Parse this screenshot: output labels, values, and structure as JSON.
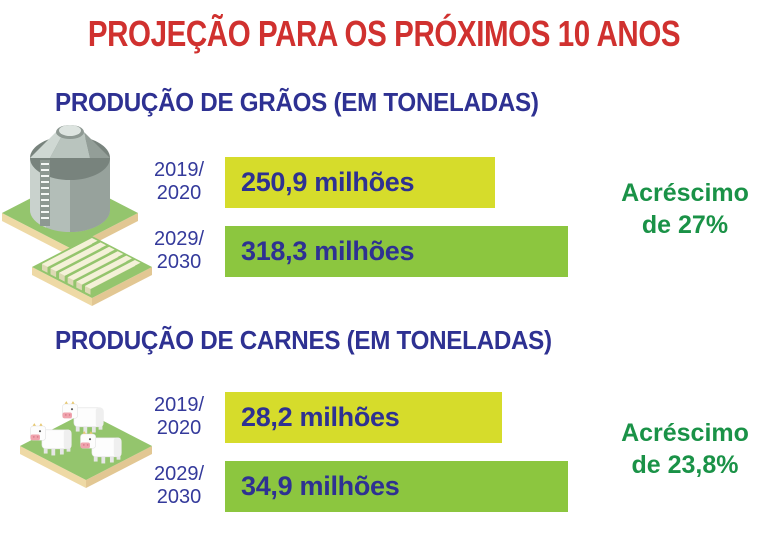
{
  "title": "PROJEÇÃO PARA OS PRÓXIMOS 10 ANOS",
  "colors": {
    "title_red": "#d0312f",
    "navy": "#2e3192",
    "accent_green": "#1a9247",
    "bar_yellow_green": "#d6dc2b",
    "bar_green": "#8cc63f"
  },
  "sections": [
    {
      "heading": "PRODUÇÃO DE GRÃOS (EM TONELADAS)",
      "icon": "grain-silo-and-crop-field",
      "rows": [
        {
          "period_line1": "2019/",
          "period_line2": "2020",
          "value": 250.9,
          "value_label": "250,9 milhões",
          "bar_color": "#d6dc2b"
        },
        {
          "period_line1": "2029/",
          "period_line2": "2030",
          "value": 318.3,
          "value_label": "318,3 milhões",
          "bar_color": "#8cc63f"
        }
      ],
      "increase": {
        "line1": "Acréscimo",
        "line2": "de 27%"
      }
    },
    {
      "heading": "PRODUÇÃO DE CARNES (EM TONELADAS)",
      "icon": "cattle-herd",
      "rows": [
        {
          "period_line1": "2019/",
          "period_line2": "2020",
          "value": 28.2,
          "value_label": "28,2 milhões",
          "bar_color": "#d6dc2b"
        },
        {
          "period_line1": "2029/",
          "period_line2": "2030",
          "value": 34.9,
          "value_label": "34,9 milhões",
          "bar_color": "#8cc63f"
        }
      ],
      "increase": {
        "line1": "Acréscimo",
        "line2": "de 23,8%"
      }
    }
  ],
  "chart_data": [
    {
      "type": "bar",
      "orientation": "horizontal",
      "title": "PRODUÇÃO DE GRÃOS (EM TONELADAS)",
      "categories": [
        "2019/2020",
        "2029/2030"
      ],
      "values": [
        250.9,
        318.3
      ],
      "unit": "milhões de toneladas",
      "data_labels": [
        "250,9 milhões",
        "318,3 milhões"
      ],
      "annotation": "Acréscimo de 27%",
      "bar_colors": [
        "#d6dc2b",
        "#8cc63f"
      ],
      "legend": "none",
      "grid": false,
      "axes": "none"
    },
    {
      "type": "bar",
      "orientation": "horizontal",
      "title": "PRODUÇÃO DE CARNES (EM TONELADAS)",
      "categories": [
        "2019/2020",
        "2029/2030"
      ],
      "values": [
        28.2,
        34.9
      ],
      "unit": "milhões de toneladas",
      "data_labels": [
        "28,2 milhões",
        "34,9 milhões"
      ],
      "annotation": "Acréscimo de 23,8%",
      "bar_colors": [
        "#d6dc2b",
        "#8cc63f"
      ],
      "legend": "none",
      "grid": false,
      "axes": "none"
    }
  ]
}
